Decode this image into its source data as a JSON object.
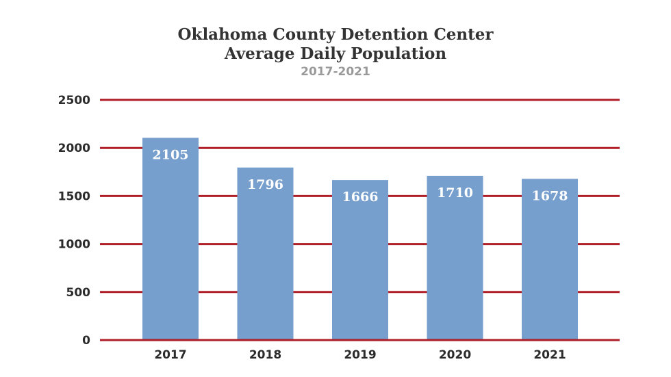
{
  "chart_data": {
    "type": "bar",
    "title": "Oklahoma County Detention Center",
    "title_line2": "Average Daily Population",
    "subtitle": "2017-2021",
    "categories": [
      "2017",
      "2018",
      "2019",
      "2020",
      "2021"
    ],
    "values": [
      2105,
      1796,
      1666,
      1710,
      1678
    ],
    "data_labels": [
      "2105",
      "1796",
      "1666",
      "1710",
      "1678"
    ],
    "xlabel": "",
    "ylabel": "",
    "ylim": [
      0,
      2500
    ],
    "yticks": [
      "0",
      "500",
      "1000",
      "1500",
      "2000",
      "2500"
    ],
    "grid": true,
    "legend": "none",
    "colors": {
      "bar": "#779fcd",
      "grid": "#b01e28",
      "text": "#333333",
      "subtitle": "#999999",
      "data_label": "#ffffff"
    }
  }
}
